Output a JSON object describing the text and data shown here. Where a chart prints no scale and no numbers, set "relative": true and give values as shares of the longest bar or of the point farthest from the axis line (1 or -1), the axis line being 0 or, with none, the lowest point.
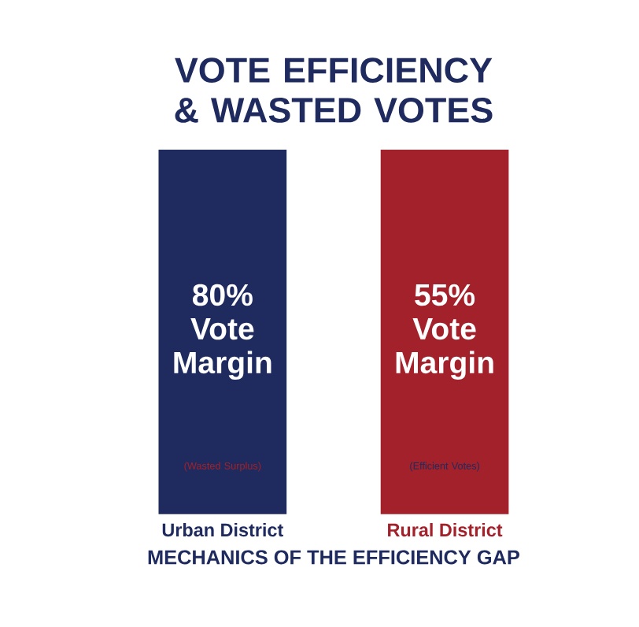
{
  "chart_data": {
    "type": "bar",
    "relative": true,
    "title": "VOTE EFFICIENCY & WASTED VOTES",
    "xlabel": "MECHANICS OF THE EFFICIENCY GAP",
    "categories": [
      "Urban District",
      "Rural District"
    ],
    "values": [
      1,
      1
    ],
    "colors": [
      "#1f2b5e",
      "#a3212a"
    ],
    "annotations": [
      "80% Vote Margin",
      "(Wasted Surplus)",
      "55% Vote Margin",
      "(Efficient Votes)"
    ]
  }
}
